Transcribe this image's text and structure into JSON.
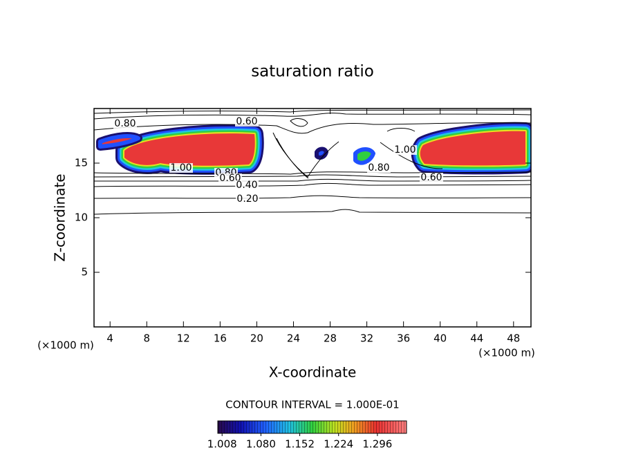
{
  "chart_data": {
    "type": "contour",
    "title": "saturation ratio",
    "x_label": "X-coordinate",
    "y_label": "Z-coordinate",
    "x_unit": "(×1000 m)",
    "y_unit": "(×1000 m)",
    "xlim": [
      2.25,
      49.9
    ],
    "ylim": [
      0,
      20
    ],
    "xticks": [
      4,
      8,
      12,
      16,
      20,
      24,
      28,
      32,
      36,
      40,
      44,
      48
    ],
    "yticks": [
      5,
      10,
      15
    ],
    "contour_interval": "CONTOUR INTERVAL = 1.000E-01",
    "contour_labels": [
      {
        "value": 0.8,
        "label": "0.80"
      },
      {
        "value": 0.6,
        "label": "0.60"
      },
      {
        "value": 1.0,
        "label": "1.00"
      },
      {
        "value": 0.8,
        "label": "0.80"
      },
      {
        "value": 0.6,
        "label": "0.60"
      },
      {
        "value": 0.4,
        "label": "0.40"
      },
      {
        "value": 0.2,
        "label": "0.20"
      },
      {
        "value": 1.0,
        "label": "1.00"
      },
      {
        "value": 0.8,
        "label": "0.80"
      },
      {
        "value": 0.6,
        "label": "0.60"
      }
    ],
    "colorbar": {
      "lim": [
        1.0,
        1.35
      ],
      "ticks": [
        1.008,
        {
          "value": 1.08,
          "label": "1.080"
        },
        1.152,
        1.224,
        1.296
      ]
    }
  }
}
